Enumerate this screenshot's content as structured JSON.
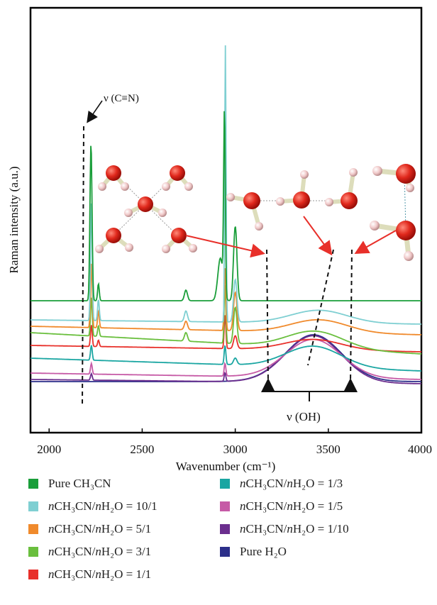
{
  "chart_data": {
    "type": "line",
    "xlabel": "Wavenumber (cm⁻¹)",
    "ylabel": "Raman intensity (a.u.)",
    "xlim": [
      1900,
      4000
    ],
    "xticks": [
      "2000",
      "2500",
      "3000",
      "3500",
      "4000"
    ],
    "y_ticks_shown": false,
    "grid": false,
    "annotations": {
      "cn": "ν (C≡N)",
      "oh": "ν (OH)"
    },
    "series": [
      {
        "name": "Pure CH₃CN",
        "color": "#1a9e3a",
        "offset": 0.62,
        "features": [
          [
            2225,
            0.74,
            12
          ],
          [
            2265,
            0.08,
            10
          ],
          [
            2735,
            0.05,
            18
          ],
          [
            2920,
            0.2,
            30
          ],
          [
            2942,
            0.85,
            10
          ],
          [
            3000,
            0.35,
            20
          ]
        ],
        "water": 0.0,
        "water_center": 3420,
        "baseline_slope": 0.0
      },
      {
        "name": "nCH₃CN/nH₂O = 10/1",
        "color": "#7fcfd2",
        "offset": 0.53,
        "features": [
          [
            2227,
            0.55,
            10
          ],
          [
            2265,
            0.1,
            10
          ],
          [
            2735,
            0.05,
            18
          ],
          [
            2947,
            1.3,
            8
          ],
          [
            3000,
            0.2,
            20
          ]
        ],
        "water": 0.06,
        "water_center": 3450,
        "baseline_slope": -0.02
      },
      {
        "name": "nCH₃CN/nH₂O = 5/1",
        "color": "#f08a2c",
        "offset": 0.5,
        "features": [
          [
            2227,
            0.3,
            10
          ],
          [
            2265,
            0.08,
            10
          ],
          [
            2735,
            0.04,
            18
          ],
          [
            2945,
            0.3,
            10
          ],
          [
            3000,
            0.18,
            20
          ]
        ],
        "water": 0.06,
        "water_center": 3450,
        "baseline_slope": -0.04
      },
      {
        "name": "nCH₃CN/nH₂O = 3/1",
        "color": "#6abf3e",
        "offset": 0.47,
        "features": [
          [
            2227,
            0.18,
            10
          ],
          [
            2265,
            0.05,
            10
          ],
          [
            2735,
            0.04,
            18
          ],
          [
            2945,
            0.28,
            10
          ],
          [
            3000,
            0.17,
            20
          ]
        ],
        "water": 0.08,
        "water_center": 3430,
        "baseline_slope": -0.1
      },
      {
        "name": "nCH₃CN/nH₂O = 1/1",
        "color": "#e8302a",
        "offset": 0.41,
        "features": [
          [
            2227,
            0.1,
            10
          ],
          [
            2265,
            0.03,
            10
          ],
          [
            2945,
            0.16,
            10
          ],
          [
            3000,
            0.06,
            20
          ]
        ],
        "water": 0.05,
        "water_center": 3420,
        "baseline_slope": -0.03
      },
      {
        "name": "nCH₃CN/nH₂O = 1/3",
        "color": "#1aa6a2",
        "offset": 0.35,
        "features": [
          [
            2227,
            0.07,
            10
          ],
          [
            2945,
            0.09,
            10
          ],
          [
            3000,
            0.03,
            20
          ]
        ],
        "water": 0.1,
        "water_center": 3420,
        "baseline_slope": -0.06
      },
      {
        "name": "nCH₃CN/nH₂O = 1/5",
        "color": "#c65aa6",
        "offset": 0.28,
        "features": [
          [
            2227,
            0.05,
            10
          ],
          [
            2945,
            0.06,
            10
          ]
        ],
        "water": 0.18,
        "water_center": 3420,
        "baseline_slope": -0.03
      },
      {
        "name": "nCH₃CN/nH₂O = 1/10",
        "color": "#6b2e8e",
        "offset": 0.25,
        "features": [
          [
            2227,
            0.03,
            10
          ],
          [
            2945,
            0.04,
            10
          ]
        ],
        "water": 0.22,
        "water_center": 3420,
        "baseline_slope": -0.02
      },
      {
        "name": "Pure H₂O",
        "color": "#2c2f8a",
        "offset": 0.24,
        "features": [],
        "water": 0.22,
        "water_center": 3420,
        "baseline_slope": 0.0
      }
    ]
  },
  "legend": {
    "items": [
      {
        "prefix": "",
        "text": "Pure CH₃CN",
        "color": "#1a9e3a"
      },
      {
        "prefix": "n",
        "text": "CH₃CN/nH₂O = 10/1",
        "color": "#7fcfd2"
      },
      {
        "prefix": "n",
        "text": "CH₃CN/nH₂O = 5/1",
        "color": "#f08a2c"
      },
      {
        "prefix": "n",
        "text": "CH₃CN/nH₂O = 3/1",
        "color": "#6abf3e"
      },
      {
        "prefix": "n",
        "text": "CH₃CN/nH₂O = 1/1",
        "color": "#e8302a"
      },
      {
        "prefix": "n",
        "text": "CH₃CN/nH₂O = 1/3",
        "color": "#1aa6a2"
      },
      {
        "prefix": "n",
        "text": "CH₃CN/nH₂O = 1/5",
        "color": "#c65aa6"
      },
      {
        "prefix": "n",
        "text": "CH₃CN/nH₂O = 1/10",
        "color": "#6b2e8e"
      },
      {
        "prefix": "",
        "text": "Pure H₂O",
        "color": "#2c2f8a"
      }
    ]
  }
}
